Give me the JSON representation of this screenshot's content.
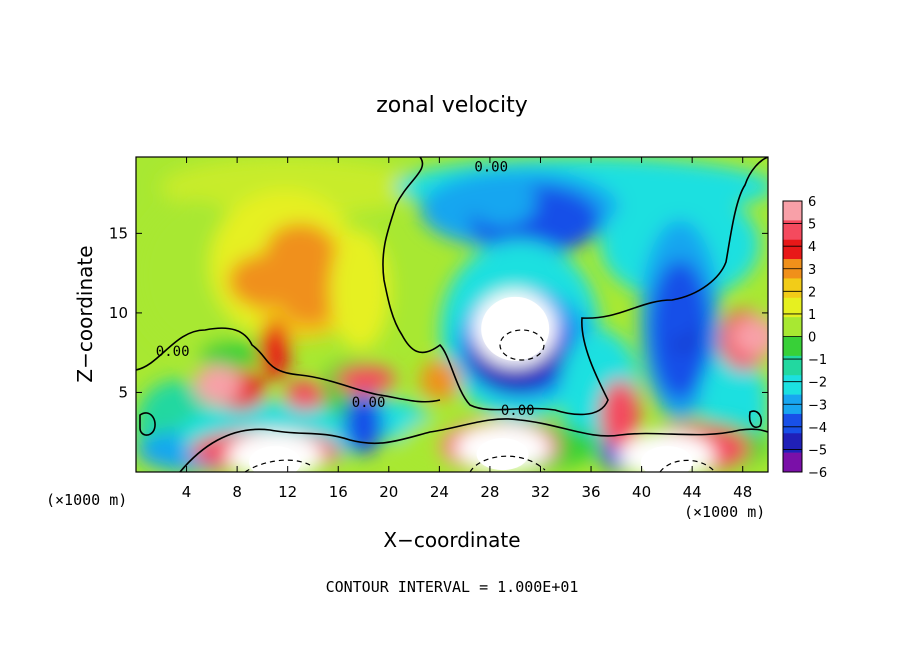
{
  "chart_data": {
    "type": "heatmap",
    "title": "zonal velocity",
    "xlabel": "X−coordinate",
    "ylabel": "Z−coordinate",
    "x_unit_left": "(×1000 m)",
    "x_unit_right": "(×1000 m)",
    "footer": "CONTOUR INTERVAL = 1.000E+01",
    "xlim": [
      0,
      50
    ],
    "ylim": [
      0,
      19.8
    ],
    "x_ticks": [
      "4",
      "8",
      "12",
      "16",
      "20",
      "24",
      "28",
      "32",
      "36",
      "40",
      "44",
      "48"
    ],
    "y_ticks": [
      "5",
      "10",
      "15"
    ],
    "contour_labels": [
      {
        "text": "0.00",
        "x": 28.1,
        "y": 19.2
      },
      {
        "text": "0.00",
        "x": 2.9,
        "y": 7.6
      },
      {
        "text": "0.00",
        "x": 18.4,
        "y": 4.4
      },
      {
        "text": "0.00",
        "x": 30.2,
        "y": 3.9
      }
    ],
    "colorbar": {
      "labels": [
        "6",
        "5",
        "4",
        "3",
        "2",
        "1",
        "0",
        "−1",
        "−2",
        "−3",
        "−4",
        "−5",
        "−6"
      ],
      "values": [
        6,
        5,
        4,
        3,
        2,
        1,
        0,
        -1,
        -2,
        -3,
        -4,
        -5,
        -6
      ],
      "colors": [
        "#f8a0a8",
        "#f44a5e",
        "#e81818",
        "#f0901a",
        "#f2cc18",
        "#e6f020",
        "#a8e832",
        "#38d038",
        "#22d8a0",
        "#1ce0e0",
        "#18a6f0",
        "#1850e8",
        "#2020b8",
        "#7a10a8"
      ]
    },
    "features": [
      {
        "x": 10,
        "y": 12,
        "value": 3
      },
      {
        "x": 13,
        "y": 14,
        "value": 2.6
      },
      {
        "x": 29,
        "y": 17,
        "value": -4.5
      },
      {
        "x": 30,
        "y": 9,
        "value": -6.5
      },
      {
        "x": 43,
        "y": 10,
        "value": -5.5
      },
      {
        "x": 11,
        "y": 1,
        "value": 7
      },
      {
        "x": 42,
        "y": 1,
        "value": 7
      },
      {
        "x": 29,
        "y": 1.5,
        "value": 7
      },
      {
        "x": 49,
        "y": 8.5,
        "value": 6
      },
      {
        "x": 6.5,
        "y": 5.5,
        "value": 5.5
      },
      {
        "x": 18,
        "y": 3,
        "value": -5
      }
    ]
  }
}
